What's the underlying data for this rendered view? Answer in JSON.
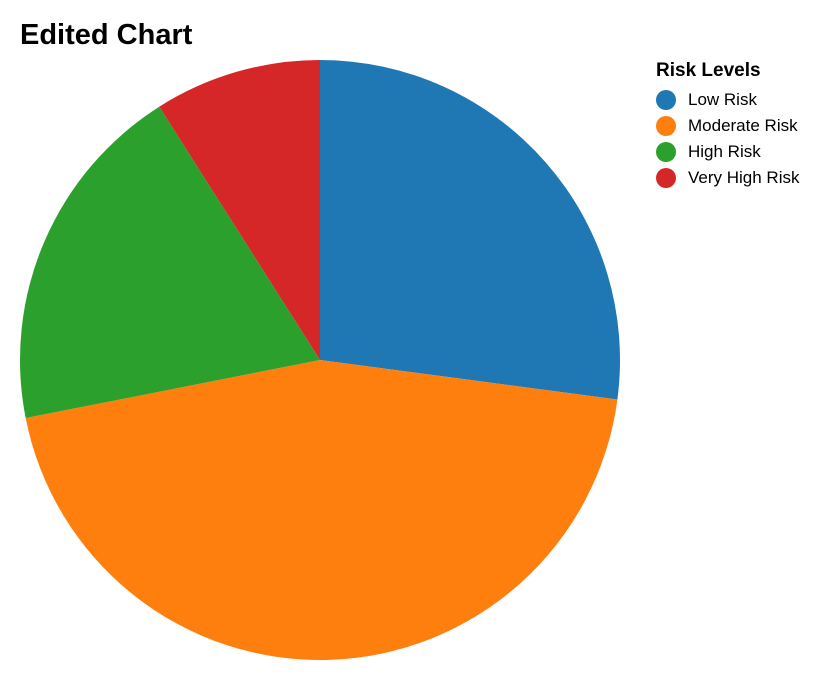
{
  "chart_data": {
    "type": "pie",
    "title": "Edited Chart",
    "legend_title": "Risk Levels",
    "legend_position": "top-right",
    "categories": [
      "Low Risk",
      "Moderate Risk",
      "High Risk",
      "Very High Risk"
    ],
    "values": [
      27.1,
      44.8,
      19.1,
      9.0
    ],
    "colors": [
      "#1f77b4",
      "#ff7f0e",
      "#2ca02c",
      "#d62728"
    ]
  }
}
